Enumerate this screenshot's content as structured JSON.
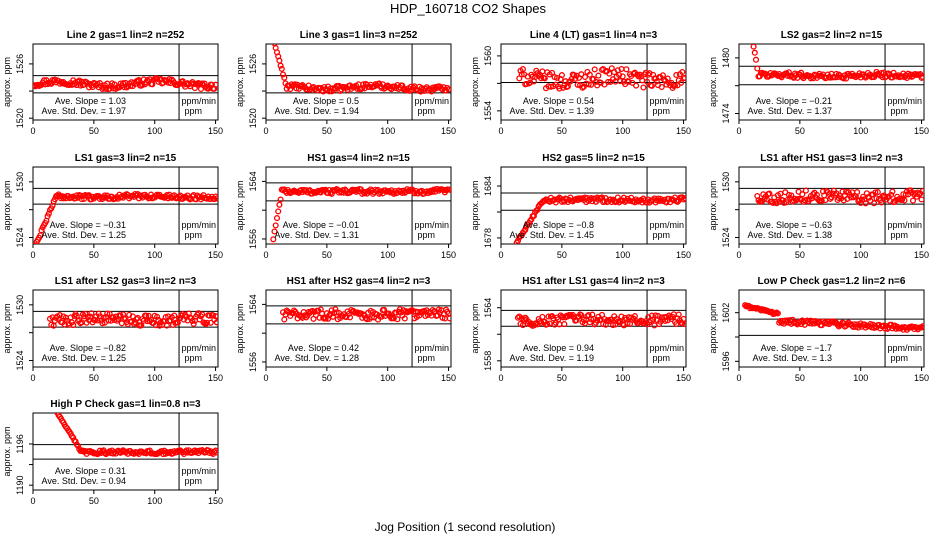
{
  "title": "HDP_160718  CO2 Shapes",
  "xlabel": "Jog Position (1 second resolution)",
  "ylabel": "approx. ppm",
  "slope_label": "Ave. Slope =",
  "slope_unit": "ppm/min",
  "std_label": "Ave. Std. Dev. =",
  "std_unit": "ppm",
  "colors": {
    "points": "#ff0000",
    "axes": "#000000"
  },
  "chart_data": [
    {
      "type": "scatter",
      "title": "Line 2 gas=1 lin=2 n=252",
      "xlim": [
        0,
        152
      ],
      "ylim": [
        1519.8,
        1528.2
      ],
      "xticks": [
        0,
        50,
        100,
        150
      ],
      "yticks": [
        1520,
        1523,
        1526
      ],
      "yticklabels": [
        "1520",
        "",
        "1526"
      ],
      "hlines": [
        1524.7,
        1522.8
      ],
      "vline": 120,
      "x_start": 1,
      "n_points": 150,
      "base": 1523.8,
      "trend": 0.45,
      "noise": 0.35,
      "init": null,
      "slope": "1.03",
      "std": "1.97"
    },
    {
      "type": "scatter",
      "title": "Line 3 gas=1 lin=3 n=252",
      "xlim": [
        0,
        152
      ],
      "ylim": [
        1519.8,
        1528.2
      ],
      "xticks": [
        0,
        50,
        100,
        150
      ],
      "yticks": [
        1520,
        1523,
        1526
      ],
      "yticklabels": [
        "1520",
        "",
        "1526"
      ],
      "hlines": [
        1524.7,
        1522.8
      ],
      "vline": 120,
      "x_start": 1,
      "n_points": 150,
      "base": 1523.4,
      "trend": 0.3,
      "noise": 0.3,
      "init": {
        "len": 16,
        "from": 1531,
        "to": 1523.4
      },
      "slope": "0.5",
      "std": "1.94"
    },
    {
      "type": "scatter",
      "title": "Line 4 (LT) gas=1 lin=4 n=3",
      "xlim": [
        0,
        152
      ],
      "ylim": [
        1553,
        1561.3
      ],
      "xticks": [
        0,
        50,
        100,
        150
      ],
      "yticks": [
        1554,
        1557,
        1560
      ],
      "yticklabels": [
        "1554",
        "",
        "1560"
      ],
      "hlines": [
        1559.2,
        1557.1
      ],
      "vline": 120,
      "x_start": 15,
      "n_points": 137,
      "base": 1557.5,
      "trend": 0.5,
      "noise": 0.9,
      "init": null,
      "slope": "0.54",
      "std": "1.39"
    },
    {
      "type": "scatter",
      "title": "LS2 gas=2 lin=2 n=15",
      "xlim": [
        0,
        152
      ],
      "ylim": [
        1473.3,
        1481.5
      ],
      "xticks": [
        0,
        50,
        100,
        150
      ],
      "yticks": [
        1474,
        1477,
        1480
      ],
      "yticklabels": [
        "1474",
        "",
        "1480"
      ],
      "hlines": [
        1479.1,
        1477.1
      ],
      "vline": 120,
      "x_start": 10,
      "n_points": 142,
      "base": 1478.1,
      "trend": -0.15,
      "noise": 0.3,
      "init": {
        "len": 6,
        "from": 1483,
        "to": 1478.1
      },
      "slope": "−0.21",
      "std": "1.37"
    },
    {
      "type": "scatter",
      "title": "LS1 gas=3 lin=2 n=15",
      "xlim": [
        0,
        152
      ],
      "ylim": [
        1523.3,
        1531.6
      ],
      "xticks": [
        0,
        50,
        100,
        150
      ],
      "yticks": [
        1524,
        1527,
        1530
      ],
      "yticklabels": [
        "1524",
        "",
        "1530"
      ],
      "hlines": [
        1529.3,
        1527.6
      ],
      "vline": 120,
      "x_start": 1,
      "n_points": 151,
      "base": 1528.4,
      "trend": -0.1,
      "noise": 0.25,
      "init": {
        "len": 18,
        "from": 1522.8,
        "to": 1528.4
      },
      "slope": "−0.31",
      "std": "1.25"
    },
    {
      "type": "scatter",
      "title": "HS1 gas=4 lin=2 n=15",
      "xlim": [
        0,
        152
      ],
      "ylim": [
        1555.3,
        1566
      ],
      "xticks": [
        0,
        50,
        100,
        150
      ],
      "yticks": [
        1556,
        1560,
        1564
      ],
      "yticklabels": [
        "1556",
        "",
        "1564"
      ],
      "hlines": [
        1563.8,
        1561.3
      ],
      "vline": 120,
      "x_start": 5,
      "n_points": 147,
      "base": 1562.6,
      "trend": 0,
      "noise": 0.35,
      "init": {
        "len": 8,
        "from": 1555,
        "to": 1562.6
      },
      "slope": "−0.01",
      "std": "1.31"
    },
    {
      "type": "scatter",
      "title": "HS2 gas=5 lin=2 n=15",
      "xlim": [
        0,
        152
      ],
      "ylim": [
        1677.3,
        1686.2
      ],
      "xticks": [
        0,
        50,
        100,
        150
      ],
      "yticks": [
        1678,
        1681,
        1684
      ],
      "yticklabels": [
        "1678",
        "",
        "1684"
      ],
      "hlines": [
        1683.2,
        1681.2
      ],
      "vline": 120,
      "x_start": 13,
      "n_points": 139,
      "base": 1682.4,
      "trend": -0.05,
      "noise": 0.3,
      "init": {
        "len": 22,
        "from": 1677.5,
        "to": 1682.4
      },
      "slope": "−0.8",
      "std": "1.45"
    },
    {
      "type": "scatter",
      "title": "LS1 after HS1 gas=3 lin=2 n=3",
      "xlim": [
        0,
        152
      ],
      "ylim": [
        1523.3,
        1531.6
      ],
      "xticks": [
        0,
        50,
        100,
        150
      ],
      "yticks": [
        1524,
        1527,
        1530
      ],
      "yticklabels": [
        "1524",
        "",
        "1530"
      ],
      "hlines": [
        1529.3,
        1527.6
      ],
      "vline": 120,
      "x_start": 15,
      "n_points": 137,
      "base": 1528.4,
      "trend": -0.2,
      "noise": 0.6,
      "init": null,
      "slope": "−0.63",
      "std": "1.38"
    },
    {
      "type": "scatter",
      "title": "LS1 after LS2 gas=3 lin=2 n=3",
      "xlim": [
        0,
        152
      ],
      "ylim": [
        1523.3,
        1531.6
      ],
      "xticks": [
        0,
        50,
        100,
        150
      ],
      "yticks": [
        1524,
        1527,
        1530
      ],
      "yticklabels": [
        "1524",
        "",
        "1530"
      ],
      "hlines": [
        1529.3,
        1527.6
      ],
      "vline": 120,
      "x_start": 14,
      "n_points": 138,
      "base": 1528.4,
      "trend": -0.2,
      "noise": 0.6,
      "init": null,
      "slope": "−0.82",
      "std": "1.25"
    },
    {
      "type": "scatter",
      "title": "HS1 after HS2 gas=4 lin=2 n=3",
      "xlim": [
        0,
        152
      ],
      "ylim": [
        1555.3,
        1566
      ],
      "xticks": [
        0,
        50,
        100,
        150
      ],
      "yticks": [
        1556,
        1560,
        1564
      ],
      "yticklabels": [
        "1556",
        "",
        "1564"
      ],
      "hlines": [
        1563.8,
        1561.3
      ],
      "vline": 120,
      "x_start": 14,
      "n_points": 138,
      "base": 1562.6,
      "trend": -0.1,
      "noise": 0.7,
      "init": null,
      "slope": "0.42",
      "std": "1.28"
    },
    {
      "type": "scatter",
      "title": "HS1 after LS1 gas=4 lin=2 n=3",
      "xlim": [
        0,
        152
      ],
      "ylim": [
        1557.3,
        1566
      ],
      "xticks": [
        0,
        50,
        100,
        150
      ],
      "yticks": [
        1558,
        1561,
        1564
      ],
      "yticklabels": [
        "1558",
        "",
        "1564"
      ],
      "hlines": [
        1563.7,
        1561.9
      ],
      "vline": 120,
      "x_start": 14,
      "n_points": 138,
      "base": 1562.6,
      "trend": 0.2,
      "noise": 0.6,
      "init": null,
      "slope": "0.94",
      "std": "1.19"
    },
    {
      "type": "scatter",
      "title": "Low P Check gas=1.2 lin=2 n=6",
      "xlim": [
        0,
        152
      ],
      "ylim": [
        1595.3,
        1604.8
      ],
      "xticks": [
        0,
        50,
        100,
        150
      ],
      "yticks": [
        1596,
        1599,
        1602
      ],
      "yticklabels": [
        "1596",
        "",
        "1602"
      ],
      "hlines": [
        1601.2,
        1599.2
      ],
      "vline": 120,
      "x_start": 5,
      "n_points": 147,
      "base": 1600.6,
      "trend": -1.1,
      "noise": 0.3,
      "init": {
        "len": 28,
        "from": 1602.8,
        "to": 1601.8
      },
      "slope": "−1.7",
      "std": "1.3"
    },
    {
      "type": "scatter",
      "title": "High P Check gas=1 lin=0.8 n=3",
      "xlim": [
        0,
        152
      ],
      "ylim": [
        1189.3,
        1200.5
      ],
      "xticks": [
        0,
        50,
        100,
        150
      ],
      "yticks": [
        1190,
        1193,
        1196
      ],
      "yticklabels": [
        "1190",
        "",
        "1196"
      ],
      "hlines": [
        1195.9,
        1193.8
      ],
      "vline": 120,
      "x_start": 20,
      "n_points": 132,
      "base": 1194.8,
      "trend": 0.05,
      "noise": 0.3,
      "init": {
        "len": 20,
        "from": 1200.5,
        "to": 1194.8
      },
      "slope": "0.31",
      "std": "0.94"
    }
  ]
}
